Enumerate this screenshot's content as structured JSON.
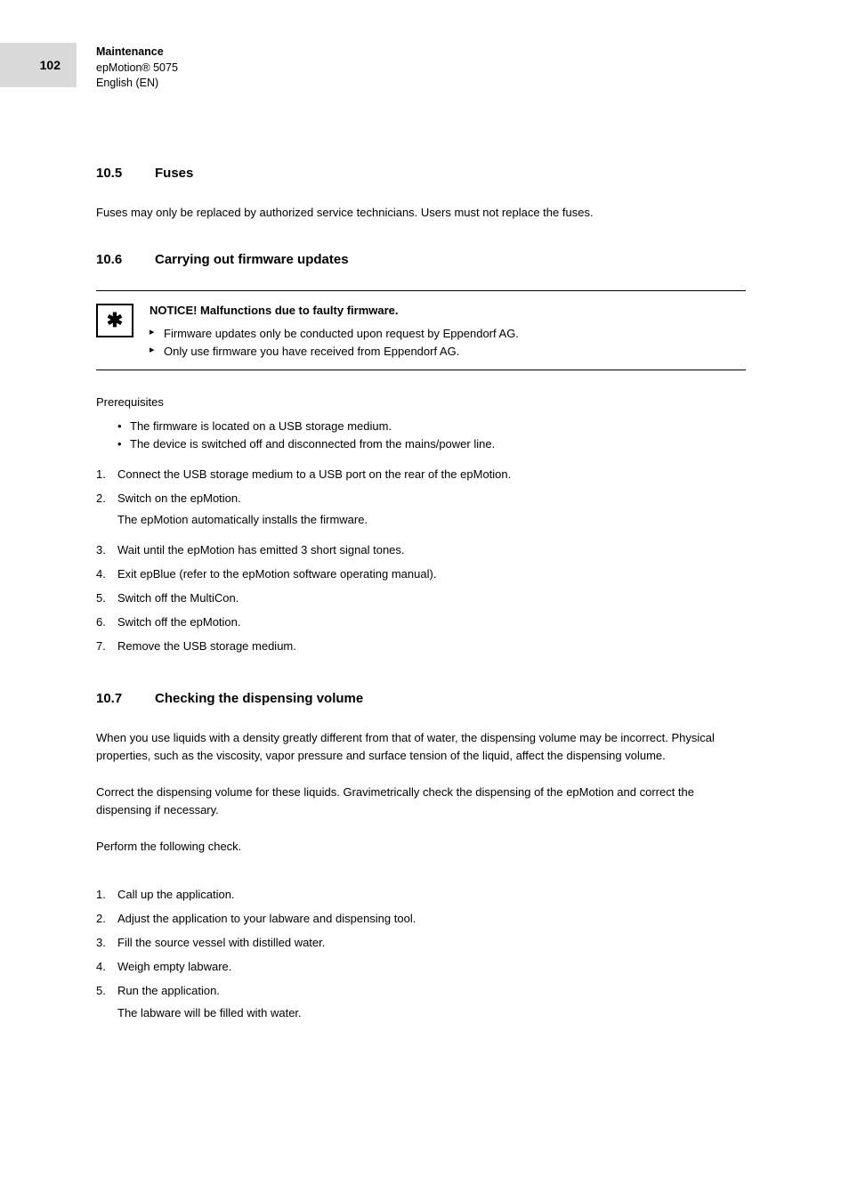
{
  "page_number": "102",
  "header": {
    "title": "Maintenance",
    "subtitle1": "epMotion® 5075",
    "subtitle2": "English (EN)"
  },
  "section_fuses": {
    "number": "10.5",
    "title": "Fuses",
    "body": "Fuses may only be replaced by authorized service technicians. Users must not replace the fuses."
  },
  "section_firmware": {
    "number": "10.6",
    "title": "Carrying out firmware updates",
    "notice_title": "NOTICE! Malfunctions due to faulty firmware.",
    "notice_items": [
      "Firmware updates only be conducted upon request by Eppendorf AG.",
      "Only use firmware you have received from Eppendorf AG."
    ],
    "prereq_label": "Prerequisites",
    "prereqs": [
      "The firmware is located on a USB storage medium.",
      "The device is switched off and disconnected from the mains/power line."
    ],
    "steps": [
      {
        "n": "1.",
        "t": "Connect the USB storage medium to a USB port on the rear of the epMotion."
      },
      {
        "n": "2.",
        "t": "Switch on the epMotion.",
        "sub": "The epMotion automatically installs the firmware."
      },
      {
        "n": "3.",
        "t": "Wait until the epMotion has emitted 3 short signal tones."
      },
      {
        "n": "4.",
        "t": "Exit epBlue (refer to the epMotion software operating manual)."
      },
      {
        "n": "5.",
        "t": "Switch off the MultiCon."
      },
      {
        "n": "6.",
        "t": "Switch off the epMotion."
      },
      {
        "n": "7.",
        "t": "Remove the USB storage medium."
      }
    ]
  },
  "section_dispense": {
    "number": "10.7",
    "title": "Checking the dispensing volume",
    "para1": "When you use liquids with a density greatly different from that of water, the dispensing volume may be incorrect. Physical properties, such as the viscosity, vapor pressure and surface tension of the liquid, affect the dispensing volume.",
    "para2": "Correct the dispensing volume for these liquids. Gravimetrically check the dispensing of the epMotion and correct the dispensing if necessary.",
    "para3": "Perform the following check.",
    "steps": [
      {
        "n": "1.",
        "t": "Call up the application."
      },
      {
        "n": "2.",
        "t": "Adjust the application to your labware and dispensing tool."
      },
      {
        "n": "3.",
        "t": "Fill the source vessel with distilled water."
      },
      {
        "n": "4.",
        "t": "Weigh empty labware."
      },
      {
        "n": "5.",
        "t": "Run the application.",
        "sub": "The labware will be filled with water."
      }
    ]
  }
}
